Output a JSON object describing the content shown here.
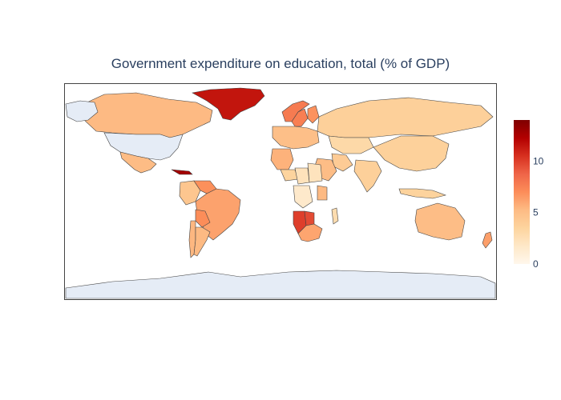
{
  "chart_data": {
    "type": "choropleth",
    "title": "Government expenditure on education, total (% of GDP)",
    "projection": "equirectangular",
    "colorscale": "OrRd",
    "missing_color": "#E5ECF6",
    "colorbar": {
      "min": 0,
      "max": 14,
      "ticks": [
        0,
        5,
        10
      ]
    },
    "regions": [
      {
        "name": "Greenland",
        "value": 11.5
      },
      {
        "name": "Namibia",
        "value": 10.0
      },
      {
        "name": "Cuba",
        "value": 12.8
      },
      {
        "name": "Norway",
        "value": 7.8
      },
      {
        "name": "Sweden",
        "value": 7.6
      },
      {
        "name": "Finland",
        "value": 6.8
      },
      {
        "name": "Canada",
        "value": 5.3
      },
      {
        "name": "Brazil",
        "value": 6.2
      },
      {
        "name": "Bolivia",
        "value": 7.0
      },
      {
        "name": "Colombia",
        "value": 4.5
      },
      {
        "name": "Venezuela",
        "value": 6.9
      },
      {
        "name": "Argentina",
        "value": 5.3
      },
      {
        "name": "Chile",
        "value": 5.4
      },
      {
        "name": "Mexico",
        "value": 5.2
      },
      {
        "name": "Russia",
        "value": 3.8
      },
      {
        "name": "China",
        "value": 3.7
      },
      {
        "name": "India",
        "value": 3.8
      },
      {
        "name": "Australia",
        "value": 5.1
      },
      {
        "name": "South Africa",
        "value": 6.1
      },
      {
        "name": "Botswana",
        "value": 9.6
      },
      {
        "name": "Kenya",
        "value": 5.3
      },
      {
        "name": "Algeria",
        "value": 5.6
      },
      {
        "name": "Saudi Arabia",
        "value": 5.1
      },
      {
        "name": "Kazakhstan",
        "value": 3.1
      },
      {
        "name": "Sudan",
        "value": 2.2
      },
      {
        "name": "Chad",
        "value": 2.3
      },
      {
        "name": "Niger",
        "value": 3.5
      },
      {
        "name": "Congo (DRC)",
        "value": 1.6
      },
      {
        "name": "Madagascar",
        "value": 2.8
      },
      {
        "name": "Iran",
        "value": 4.1
      },
      {
        "name": "Indonesia",
        "value": 3.6
      },
      {
        "name": "New Zealand",
        "value": 6.3
      },
      {
        "name": "Europe (other)",
        "value": 5.0
      }
    ]
  }
}
